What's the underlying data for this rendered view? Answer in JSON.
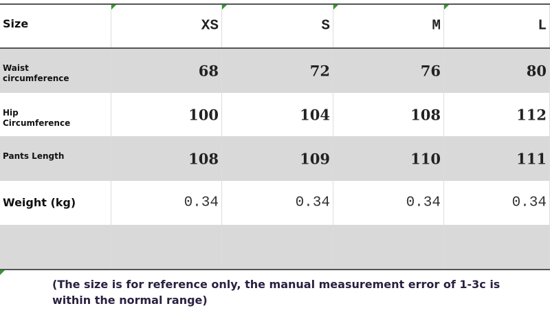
{
  "header": {
    "label": "Size",
    "sizes": [
      "XS",
      "S",
      "M",
      "L"
    ]
  },
  "rows": [
    {
      "label": "Waist circumference",
      "values": [
        68,
        72,
        76,
        80
      ]
    },
    {
      "label": "Hip Circumference",
      "values": [
        100,
        104,
        108,
        112
      ]
    },
    {
      "label": "Pants Length",
      "values": [
        108,
        109,
        110,
        111
      ]
    },
    {
      "label": "Weight (kg)",
      "values": [
        0.34,
        0.34,
        0.34,
        0.34
      ]
    }
  ],
  "note": "(The size is for reference only, the manual measurement error of 1-3c is within the normal range)"
}
